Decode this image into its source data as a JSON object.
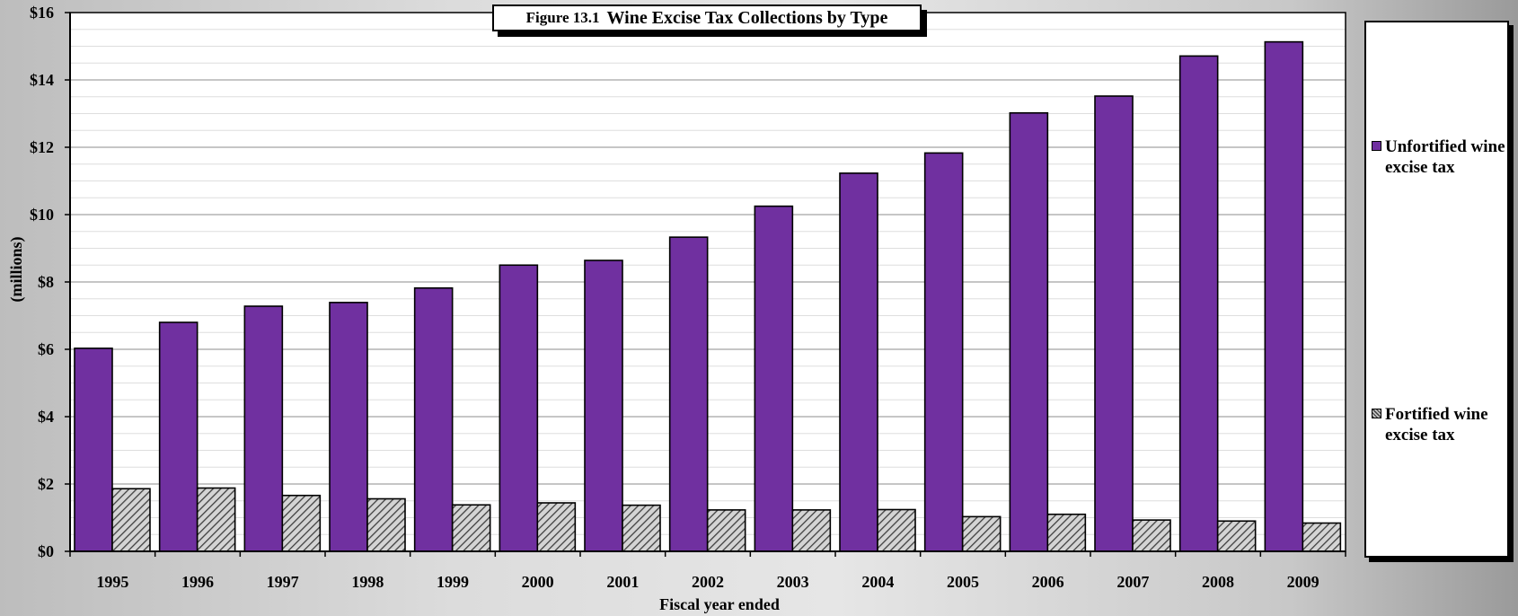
{
  "chart_data": {
    "type": "bar",
    "title": "Wine Excise Tax Collections by Type",
    "figure_label": "Figure 13.1",
    "xlabel": "Fiscal year ended",
    "ylabel": "(millions)",
    "ylim": [
      0,
      16
    ],
    "yticks": [
      0,
      2,
      4,
      6,
      8,
      10,
      12,
      14,
      16
    ],
    "ytick_labels": [
      "$0",
      "$2",
      "$4",
      "$6",
      "$8",
      "$10",
      "$12",
      "$14",
      "$16"
    ],
    "grid": true,
    "legend_position": "right",
    "categories": [
      "1995",
      "1996",
      "1997",
      "1998",
      "1999",
      "2000",
      "2001",
      "2002",
      "2003",
      "2004",
      "2005",
      "2006",
      "2007",
      "2008",
      "2009"
    ],
    "series": [
      {
        "name": "Unfortified wine excise tax",
        "color": "#7030a0",
        "values": [
          6.03,
          6.8,
          7.28,
          7.39,
          7.82,
          8.5,
          8.64,
          9.33,
          10.25,
          11.23,
          11.83,
          13.02,
          13.52,
          14.71,
          15.13
        ]
      },
      {
        "name": "Fortified wine excise tax",
        "color": "#a6a6a6",
        "pattern": "diagonal-hatch",
        "values": [
          1.86,
          1.88,
          1.66,
          1.56,
          1.38,
          1.44,
          1.37,
          1.23,
          1.23,
          1.24,
          1.03,
          1.1,
          0.93,
          0.9,
          0.84
        ]
      }
    ]
  }
}
